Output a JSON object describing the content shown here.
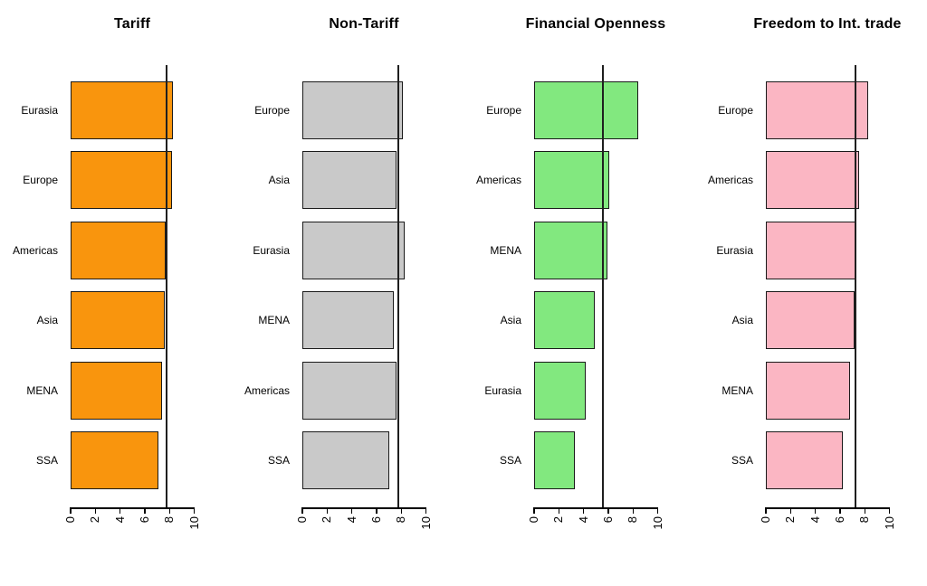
{
  "figure": {
    "background": "#ffffff",
    "axis_color": "#000000",
    "ref_line_color": "#1f1f1f"
  },
  "chart_data": [
    {
      "type": "bar",
      "orientation": "horizontal",
      "title": "Tariff",
      "bar_color": "#F9950D",
      "categories": [
        "Eurasia",
        "Europe",
        "Americas",
        "Asia",
        "MENA",
        "SSA"
      ],
      "values": [
        8.3,
        8.2,
        7.7,
        7.6,
        7.4,
        7.1
      ],
      "ref_line": 7.7,
      "xlim": [
        0,
        10
      ],
      "xticks": [
        0,
        2,
        4,
        6,
        8,
        10
      ],
      "grid": false,
      "legend": false
    },
    {
      "type": "bar",
      "orientation": "horizontal",
      "title": "Non-Tariff",
      "bar_color": "#C9C9C9",
      "categories": [
        "Europe",
        "Asia",
        "Eurasia",
        "MENA",
        "Americas",
        "SSA"
      ],
      "values": [
        8.1,
        7.6,
        8.3,
        7.4,
        7.6,
        7.0
      ],
      "ref_line": 7.7,
      "xlim": [
        0,
        10
      ],
      "xticks": [
        0,
        2,
        4,
        6,
        8,
        10
      ],
      "grid": false,
      "legend": false
    },
    {
      "type": "bar",
      "orientation": "horizontal",
      "title": "Financial Openness",
      "bar_color": "#82E87F",
      "categories": [
        "Europe",
        "Americas",
        "MENA",
        "Asia",
        "Eurasia",
        "SSA"
      ],
      "values": [
        8.4,
        6.1,
        5.9,
        4.9,
        4.2,
        3.3
      ],
      "ref_line": 5.5,
      "xlim": [
        0,
        10
      ],
      "xticks": [
        0,
        2,
        4,
        6,
        8,
        10
      ],
      "grid": false,
      "legend": false
    },
    {
      "type": "bar",
      "orientation": "horizontal",
      "title": "Freedom to Int. trade",
      "bar_color": "#FBB6C3",
      "categories": [
        "Europe",
        "Americas",
        "Eurasia",
        "Asia",
        "MENA",
        "SSA"
      ],
      "values": [
        8.3,
        7.5,
        7.3,
        7.2,
        6.8,
        6.2
      ],
      "ref_line": 7.2,
      "xlim": [
        0,
        10
      ],
      "xticks": [
        0,
        2,
        4,
        6,
        8,
        10
      ],
      "grid": false,
      "legend": false
    }
  ]
}
